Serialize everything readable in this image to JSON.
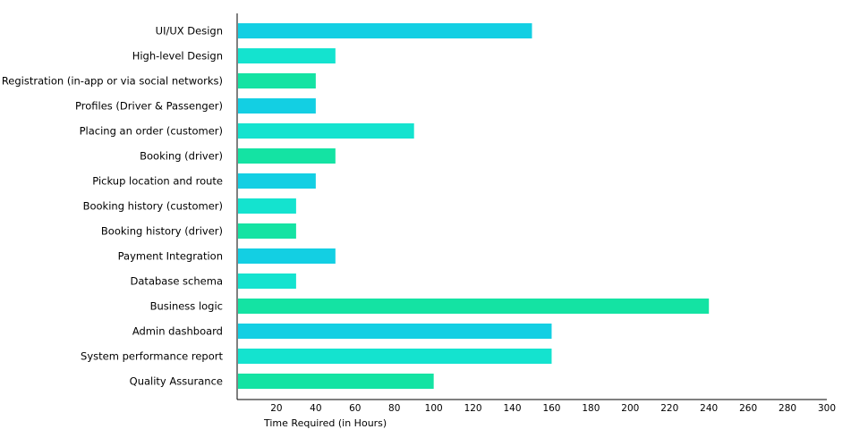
{
  "chart_data": {
    "type": "bar",
    "orientation": "horizontal",
    "categories": [
      "UI/UX Design",
      "High-level Design",
      "Registration (in-app or via social networks)",
      "Profiles (Driver & Passenger)",
      "Placing an order (customer)",
      "Booking (driver)",
      "Pickup location and route",
      "Booking history (customer)",
      "Booking history (driver)",
      "Payment Integration",
      "Database schema",
      "Business logic",
      "Admin dashboard",
      "System performance report",
      "Quality Assurance"
    ],
    "values": [
      150,
      50,
      40,
      40,
      90,
      50,
      40,
      30,
      30,
      50,
      30,
      240,
      160,
      160,
      100
    ],
    "xlabel": "Time Required (in Hours)",
    "ylabel": "",
    "xlim": [
      0,
      300
    ],
    "xticks": [
      "20",
      "40",
      "60",
      "80",
      "100",
      "120",
      "140",
      "160",
      "180",
      "200",
      "220",
      "240",
      "260",
      "280",
      "300"
    ],
    "grid": false,
    "colors": [
      "#13cfe3",
      "#14e3cf",
      "#14e3a3"
    ]
  }
}
